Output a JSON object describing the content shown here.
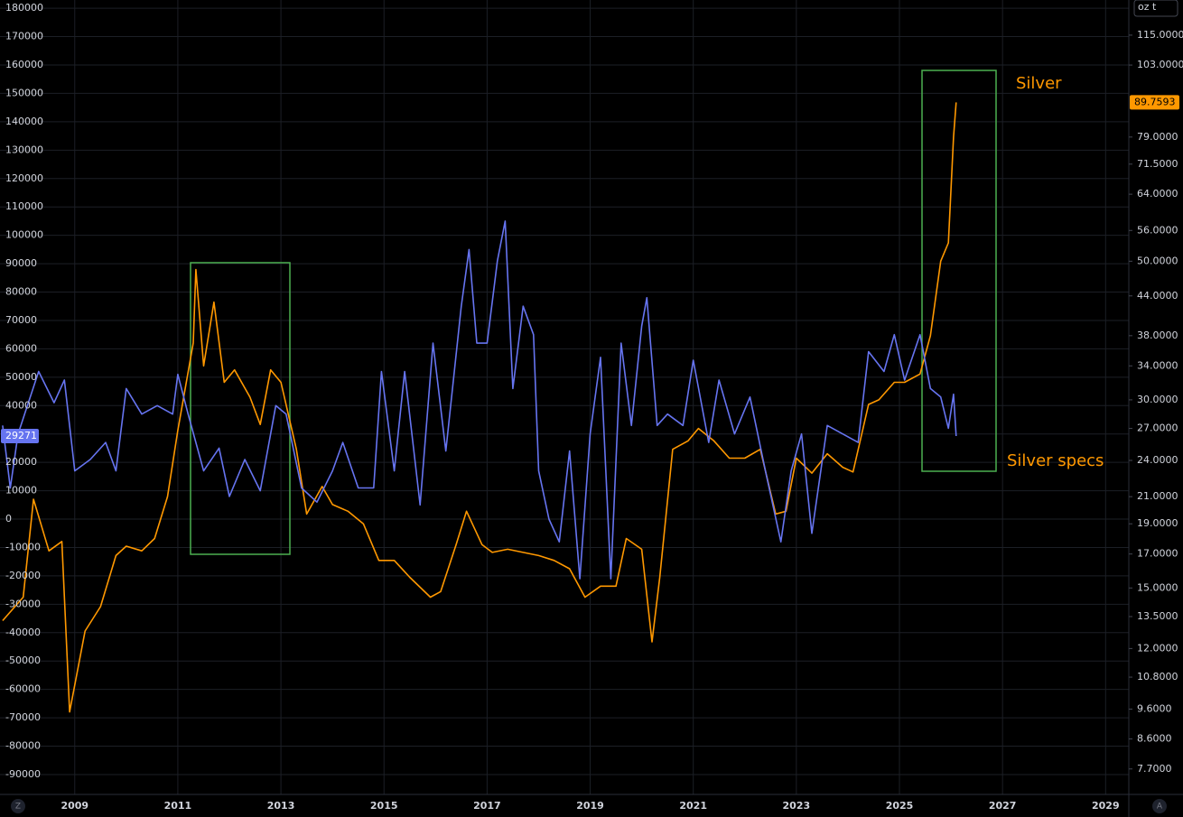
{
  "chart_data": {
    "type": "line",
    "xlim": [
      2007.55,
      2029.45
    ],
    "xticks": [
      2009,
      2011,
      2013,
      2015,
      2017,
      2019,
      2021,
      2023,
      2025,
      2027,
      2029
    ],
    "ylim": [
      -97000,
      182900
    ],
    "yticks": [
      180000,
      170000,
      160000,
      150000,
      140000,
      130000,
      120000,
      110000,
      100000,
      90000,
      80000,
      70000,
      60000,
      50000,
      40000,
      30000,
      20000,
      10000,
      0,
      -10000,
      -20000,
      -30000,
      -40000,
      -50000,
      -60000,
      -70000,
      -80000,
      -90000
    ],
    "y2lim": [
      7.01,
      130.9
    ],
    "y2scale": "log",
    "y2ticks": [
      {
        "value": 115,
        "label": "115.0000"
      },
      {
        "value": 103,
        "label": "103.0000"
      },
      {
        "value": 79,
        "label": "79.0000"
      },
      {
        "value": 71.5,
        "label": "71.5000"
      },
      {
        "value": 64,
        "label": "64.0000"
      },
      {
        "value": 56,
        "label": "56.0000"
      },
      {
        "value": 50,
        "label": "50.0000"
      },
      {
        "value": 44,
        "label": "44.0000"
      },
      {
        "value": 38,
        "label": "38.0000"
      },
      {
        "value": 34,
        "label": "34.0000"
      },
      {
        "value": 30,
        "label": "30.0000"
      },
      {
        "value": 27,
        "label": "27.0000"
      },
      {
        "value": 24,
        "label": "24.0000"
      },
      {
        "value": 21,
        "label": "21.0000"
      },
      {
        "value": 19,
        "label": "19.0000"
      },
      {
        "value": 17,
        "label": "17.0000"
      },
      {
        "value": 15,
        "label": "15.0000"
      },
      {
        "value": 13.5,
        "label": "13.5000"
      },
      {
        "value": 12,
        "label": "12.0000"
      },
      {
        "value": 10.8,
        "label": "10.8000"
      },
      {
        "value": 9.6,
        "label": "9.6000"
      },
      {
        "value": 8.6,
        "label": "8.6000"
      },
      {
        "value": 7.7,
        "label": "7.7000"
      }
    ],
    "grid": true,
    "series": [
      {
        "name": "Silver",
        "color": "#ff9800",
        "axis": "y2",
        "x": [
          2007.6,
          2008.0,
          2008.2,
          2008.5,
          2008.75,
          2008.9,
          2009.2,
          2009.5,
          2009.8,
          2010.0,
          2010.3,
          2010.55,
          2010.8,
          2011.0,
          2011.3,
          2011.35,
          2011.5,
          2011.7,
          2011.9,
          2012.1,
          2012.4,
          2012.6,
          2012.8,
          2013.0,
          2013.3,
          2013.5,
          2013.8,
          2014.0,
          2014.3,
          2014.6,
          2014.9,
          2015.2,
          2015.5,
          2015.9,
          2016.1,
          2016.4,
          2016.6,
          2016.9,
          2017.1,
          2017.4,
          2017.7,
          2018.0,
          2018.3,
          2018.6,
          2018.9,
          2019.2,
          2019.5,
          2019.7,
          2020.0,
          2020.2,
          2020.35,
          2020.6,
          2020.9,
          2021.1,
          2021.4,
          2021.7,
          2022.0,
          2022.3,
          2022.6,
          2022.8,
          2023.0,
          2023.3,
          2023.6,
          2023.9,
          2024.1,
          2024.4,
          2024.6,
          2024.9,
          2025.1,
          2025.4,
          2025.6,
          2025.8,
          2025.95,
          2026.05,
          2026.1
        ],
        "values": [
          13.3,
          14.5,
          20.8,
          17.2,
          17.8,
          9.5,
          12.8,
          14,
          16.9,
          17.5,
          17.2,
          18,
          21,
          26.8,
          37,
          48.5,
          34,
          43,
          32,
          33.5,
          30.3,
          27.4,
          33.5,
          32,
          25,
          19.7,
          21.8,
          20.4,
          19.9,
          19,
          16.6,
          16.6,
          15.6,
          14.5,
          14.8,
          17.6,
          19.9,
          17.6,
          17.1,
          17.3,
          17.1,
          16.9,
          16.6,
          16.1,
          14.5,
          15.1,
          15.1,
          18,
          17.3,
          12.3,
          15.6,
          25,
          25.8,
          27,
          25.8,
          24.2,
          24.2,
          25,
          19.7,
          19.9,
          24.2,
          22.9,
          24.6,
          23.4,
          23,
          29.5,
          30,
          32,
          32,
          33,
          38,
          50,
          53.5,
          79,
          89.7593
        ]
      },
      {
        "name": "Silver specs",
        "color": "#6674f0",
        "x": [
          2007.6,
          2007.75,
          2007.9,
          2008.3,
          2008.6,
          2008.8,
          2009.0,
          2009.3,
          2009.6,
          2009.8,
          2010.0,
          2010.3,
          2010.6,
          2010.9,
          2011.0,
          2011.2,
          2011.5,
          2011.8,
          2012.0,
          2012.3,
          2012.6,
          2012.9,
          2013.1,
          2013.4,
          2013.7,
          2014.0,
          2014.2,
          2014.5,
          2014.8,
          2014.95,
          2015.2,
          2015.4,
          2015.7,
          2015.95,
          2016.2,
          2016.5,
          2016.65,
          2016.8,
          2017.0,
          2017.2,
          2017.35,
          2017.5,
          2017.7,
          2017.9,
          2018.0,
          2018.2,
          2018.4,
          2018.6,
          2018.8,
          2019.0,
          2019.2,
          2019.4,
          2019.6,
          2019.8,
          2020.0,
          2020.1,
          2020.3,
          2020.5,
          2020.8,
          2021.0,
          2021.3,
          2021.5,
          2021.8,
          2022.1,
          2022.4,
          2022.7,
          2022.9,
          2023.1,
          2023.3,
          2023.6,
          2023.9,
          2024.2,
          2024.4,
          2024.7,
          2024.9,
          2025.1,
          2025.4,
          2025.6,
          2025.8,
          2025.95,
          2026.05,
          2026.1
        ],
        "values": [
          33000,
          11000,
          30000,
          52000,
          41000,
          49000,
          17000,
          21000,
          27000,
          17000,
          46000,
          37000,
          40000,
          37000,
          51000,
          37000,
          17000,
          25000,
          8000,
          21000,
          10000,
          40000,
          37000,
          11000,
          6000,
          17000,
          27000,
          11000,
          11000,
          52000,
          17000,
          52000,
          5000,
          62000,
          24000,
          75000,
          95000,
          62000,
          62000,
          91000,
          105000,
          46000,
          75000,
          65000,
          17000,
          0,
          -8000,
          24000,
          -21000,
          30000,
          57000,
          -21000,
          62000,
          33000,
          68000,
          78000,
          33000,
          37000,
          33000,
          56000,
          27000,
          49000,
          30000,
          43000,
          17000,
          -8000,
          17000,
          30000,
          -5000,
          33000,
          30000,
          27000,
          59000,
          52000,
          65000,
          49000,
          65000,
          46000,
          43000,
          32000,
          44000,
          29271
        ]
      }
    ]
  },
  "ui": {
    "unit": "oz t",
    "left_button": "Z",
    "right_button": "A"
  }
}
